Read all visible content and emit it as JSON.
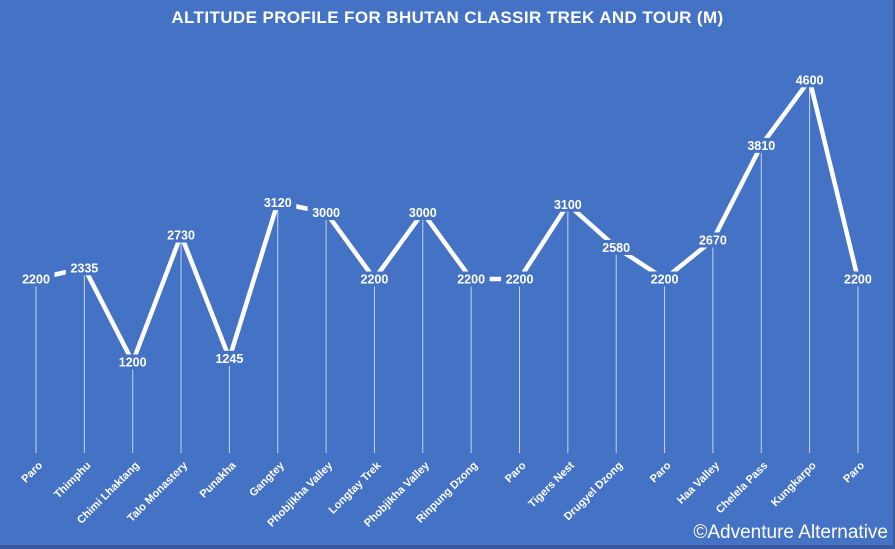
{
  "slide": {
    "title": "ALTITUDE PROFILE FOR BHUTAN CLASSIR TREK AND TOUR (M)",
    "watermark": "©Adventure Alternative"
  },
  "colors": {
    "background": "#4472C4",
    "edge_shadow": "#3A5A9F",
    "line": "#FFFFFF",
    "drop_line": "rgba(255,255,255,0.7)",
    "text": "#FFFFFF"
  },
  "chart_data": {
    "type": "line",
    "title": "ALTITUDE PROFILE FOR BHUTAN CLASSIR TREK AND TOUR (M)",
    "unit": "m",
    "categories": [
      "Paro",
      "Thimphu",
      "Chimi Lhaktang",
      "Talo Monastery",
      "Punakha",
      "Gangtey",
      "Phobjikha Valley",
      "Longtay Trek",
      "Phobjikha Valley",
      "Rinpung Dzong",
      "Paro",
      "Tigers Nest",
      "Drugyel Dzong",
      "Paro",
      "Haa Valley",
      "Chelela Pass",
      "Kungkarpo",
      "Paro"
    ],
    "values": [
      2200,
      2335,
      1200,
      2730,
      1245,
      3120,
      3000,
      2200,
      3000,
      2200,
      2200,
      3100,
      2580,
      2200,
      2670,
      3810,
      4600,
      2200
    ],
    "ylim": [
      1200,
      4600
    ],
    "grid": false,
    "legend": "none",
    "data_labels": "center",
    "drop_lines": true,
    "axes_visible": false
  }
}
